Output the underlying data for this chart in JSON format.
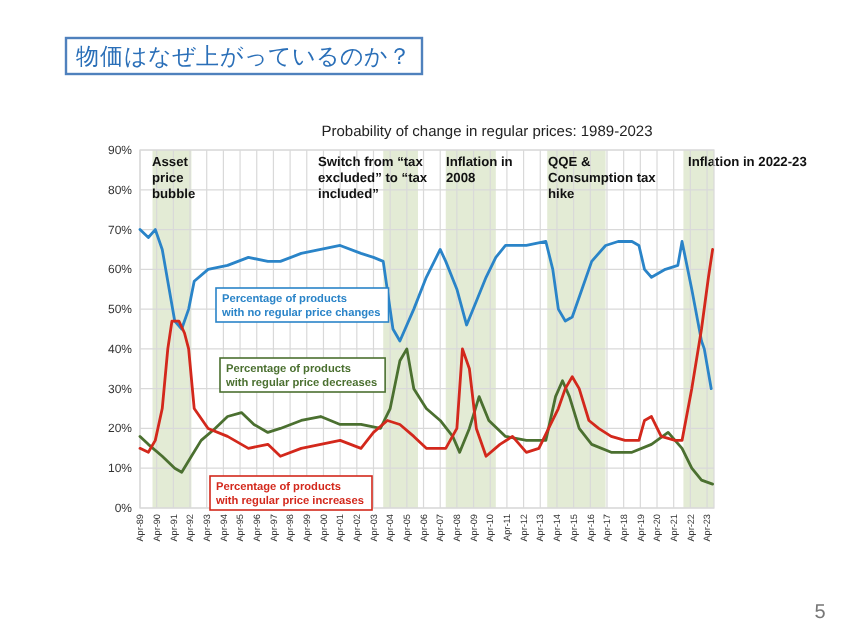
{
  "chart_data": {
    "type": "line",
    "title": "物価はなぜ上がっているのか？",
    "subtitle": "Probability of change in regular prices: 1989-2023",
    "annotations": [
      "5"
    ],
    "xlim": [
      "1989-04",
      "2023-09"
    ],
    "xticks": [
      {
        "value": "1989-04",
        "label": "Apr-89"
      },
      {
        "value": "1990-04",
        "label": "Apr-90"
      },
      {
        "value": "1991-04",
        "label": "Apr-91"
      },
      {
        "value": "1992-04",
        "label": "Apr-92"
      },
      {
        "value": "1993-04",
        "label": "Apr-93"
      },
      {
        "value": "1994-04",
        "label": "Apr-94"
      },
      {
        "value": "1995-04",
        "label": "Apr-95"
      },
      {
        "value": "1996-04",
        "label": "Apr-96"
      },
      {
        "value": "1997-04",
        "label": "Apr-97"
      },
      {
        "value": "1998-04",
        "label": "Apr-98"
      },
      {
        "value": "1999-04",
        "label": "Apr-99"
      },
      {
        "value": "2000-04",
        "label": "Apr-00"
      },
      {
        "value": "2001-04",
        "label": "Apr-01"
      },
      {
        "value": "2002-04",
        "label": "Apr-02"
      },
      {
        "value": "2003-04",
        "label": "Apr-03"
      },
      {
        "value": "2004-04",
        "label": "Apr-04"
      },
      {
        "value": "2005-04",
        "label": "Apr-05"
      },
      {
        "value": "2006-04",
        "label": "Apr-06"
      },
      {
        "value": "2007-04",
        "label": "Apr-07"
      },
      {
        "value": "2008-04",
        "label": "Apr-08"
      },
      {
        "value": "2009-04",
        "label": "Apr-09"
      },
      {
        "value": "2010-04",
        "label": "Apr-10"
      },
      {
        "value": "2011-04",
        "label": "Apr-11"
      },
      {
        "value": "2012-04",
        "label": "Apr-12"
      },
      {
        "value": "2013-04",
        "label": "Apr-13"
      },
      {
        "value": "2014-04",
        "label": "Apr-14"
      },
      {
        "value": "2015-04",
        "label": "Apr-15"
      },
      {
        "value": "2016-04",
        "label": "Apr-16"
      },
      {
        "value": "2017-04",
        "label": "Apr-17"
      },
      {
        "value": "2018-04",
        "label": "Apr-18"
      },
      {
        "value": "2019-04",
        "label": "Apr-19"
      },
      {
        "value": "2020-04",
        "label": "Apr-20"
      },
      {
        "value": "2021-04",
        "label": "Apr-21"
      },
      {
        "value": "2022-04",
        "label": "Apr-22"
      },
      {
        "value": "2023-04",
        "label": "Apr-23"
      }
    ],
    "ylim": [
      0,
      90
    ],
    "yticks": [
      {
        "value": 0,
        "label": "0%"
      },
      {
        "value": 10,
        "label": "10%"
      },
      {
        "value": 20,
        "label": "20%"
      },
      {
        "value": 30,
        "label": "30%"
      },
      {
        "value": 40,
        "label": "40%"
      },
      {
        "value": 50,
        "label": "50%"
      },
      {
        "value": 60,
        "label": "60%"
      },
      {
        "value": 70,
        "label": "70%"
      },
      {
        "value": 80,
        "label": "80%"
      },
      {
        "value": 90,
        "label": "90%"
      }
    ],
    "grid": true,
    "bands": [
      {
        "axis": "x",
        "from": "1990-01",
        "to": "1992-05",
        "label": "Asset price bubble",
        "color": "#e3ebd5"
      },
      {
        "axis": "x",
        "from": "2003-11",
        "to": "2005-12",
        "label": "Switch from “tax excluded” to “tax included”",
        "color": "#e3ebd5"
      },
      {
        "axis": "x",
        "from": "2007-08",
        "to": "2010-08",
        "label": "Inflation in 2008",
        "color": "#e3ebd5"
      },
      {
        "axis": "x",
        "from": "2013-09",
        "to": "2017-03",
        "label": "QQE & Consumption tax hike",
        "color": "#e3ebd5"
      },
      {
        "axis": "x",
        "from": "2021-11",
        "to": "2023-09",
        "label": "Inflation in 2022-23",
        "color": "#e3ebd5"
      }
    ],
    "series": [
      {
        "name": "Percentage of products with no regular price changes",
        "color": "#2a84c8",
        "x": [
          "1989-04",
          "1989-10",
          "1990-03",
          "1990-08",
          "1991-01",
          "1991-05",
          "1991-10",
          "1992-03",
          "1992-07",
          "1993-05",
          "1994-07",
          "1995-10",
          "1996-12",
          "1997-09",
          "1998-12",
          "2000-02",
          "2001-04",
          "2002-07",
          "2003-04",
          "2003-11",
          "2004-06",
          "2004-11",
          "2005-09",
          "2006-06",
          "2007-04",
          "2007-08",
          "2008-04",
          "2008-11",
          "2009-06",
          "2010-01",
          "2010-08",
          "2011-03",
          "2012-06",
          "2013-08",
          "2014-01",
          "2014-05",
          "2014-10",
          "2015-03",
          "2015-10",
          "2016-05",
          "2017-03",
          "2017-12",
          "2018-10",
          "2019-03",
          "2019-07",
          "2019-12",
          "2020-10",
          "2021-07",
          "2021-10",
          "2022-05",
          "2022-12",
          "2023-02",
          "2023-07"
        ],
        "values": [
          70,
          68,
          70,
          65,
          55,
          47,
          45,
          50,
          57,
          60,
          61,
          63,
          62,
          62,
          64,
          65,
          66,
          64,
          63,
          62,
          45,
          42,
          50,
          58,
          65,
          62,
          55,
          46,
          52,
          58,
          63,
          66,
          66,
          67,
          60,
          50,
          47,
          48,
          55,
          62,
          66,
          67,
          67,
          66,
          60,
          58,
          60,
          61,
          67,
          55,
          42,
          40,
          30
        ]
      },
      {
        "name": "Percentage of products with regular price decreases",
        "color": "#4b7030",
        "x": [
          "1989-04",
          "1989-10",
          "1990-08",
          "1991-05",
          "1991-10",
          "1992-05",
          "1992-12",
          "1993-10",
          "1994-07",
          "1995-05",
          "1996-02",
          "1996-12",
          "1997-09",
          "1998-12",
          "2000-02",
          "2001-04",
          "2002-07",
          "2003-09",
          "2004-04",
          "2004-11",
          "2005-04",
          "2005-09",
          "2006-06",
          "2007-04",
          "2008-01",
          "2008-06",
          "2009-01",
          "2009-08",
          "2010-03",
          "2011-03",
          "2012-06",
          "2013-08",
          "2014-03",
          "2014-08",
          "2015-01",
          "2015-08",
          "2016-05",
          "2017-07",
          "2018-10",
          "2019-12",
          "2020-12",
          "2021-10",
          "2022-05",
          "2022-12",
          "2023-08"
        ],
        "values": [
          18,
          16,
          13,
          10,
          9,
          13,
          17,
          20,
          23,
          24,
          21,
          19,
          20,
          22,
          23,
          21,
          21,
          20,
          25,
          37,
          40,
          30,
          25,
          22,
          18,
          14,
          20,
          28,
          22,
          18,
          17,
          17,
          28,
          32,
          28,
          20,
          16,
          14,
          14,
          16,
          19,
          15,
          10,
          7,
          6
        ]
      },
      {
        "name": "Percentage of products with regular price increases",
        "color": "#d3281c",
        "x": [
          "1989-04",
          "1989-10",
          "1990-03",
          "1990-08",
          "1990-12",
          "1991-03",
          "1991-08",
          "1991-12",
          "1992-03",
          "1992-07",
          "1993-05",
          "1994-07",
          "1995-10",
          "1996-12",
          "1997-09",
          "1998-12",
          "2000-02",
          "2001-04",
          "2002-07",
          "2003-04",
          "2004-02",
          "2004-11",
          "2005-09",
          "2006-06",
          "2007-04",
          "2007-08",
          "2008-04",
          "2008-08",
          "2009-01",
          "2009-06",
          "2010-01",
          "2010-11",
          "2011-08",
          "2012-06",
          "2013-03",
          "2013-10",
          "2014-05",
          "2014-10",
          "2015-03",
          "2015-08",
          "2016-03",
          "2016-10",
          "2017-07",
          "2018-05",
          "2019-03",
          "2019-07",
          "2019-12",
          "2020-07",
          "2021-05",
          "2021-10",
          "2022-05",
          "2022-12",
          "2023-05",
          "2023-08"
        ],
        "values": [
          15,
          14,
          17,
          25,
          40,
          47,
          47,
          44,
          40,
          25,
          20,
          18,
          15,
          16,
          13,
          15,
          16,
          17,
          15,
          19,
          22,
          21,
          18,
          15,
          15,
          15,
          20,
          40,
          35,
          20,
          13,
          16,
          18,
          14,
          15,
          20,
          25,
          30,
          33,
          30,
          22,
          20,
          18,
          17,
          17,
          22,
          23,
          18,
          17,
          17,
          30,
          45,
          58,
          65
        ]
      }
    ]
  }
}
